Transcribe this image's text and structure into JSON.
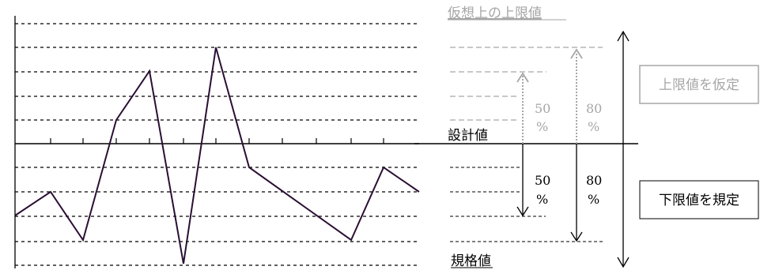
{
  "labels": {
    "virtual_upper_limit": "仮想上の上限値",
    "design_value": "設計値",
    "spec_value": "規格値",
    "upper_50_line1": "50",
    "upper_50_line2": "%",
    "upper_80_line1": "80",
    "upper_80_line2": "%",
    "lower_50_line1": "50",
    "lower_50_line2": "%",
    "lower_80_line1": "80",
    "lower_80_line2": "%"
  },
  "boxes": {
    "upper": "上限値を仮定",
    "lower": "下限値を規定"
  },
  "colors": {
    "waveform": "#2a0f33",
    "upper_gray": "#a6a6a6",
    "black": "#000000"
  }
}
